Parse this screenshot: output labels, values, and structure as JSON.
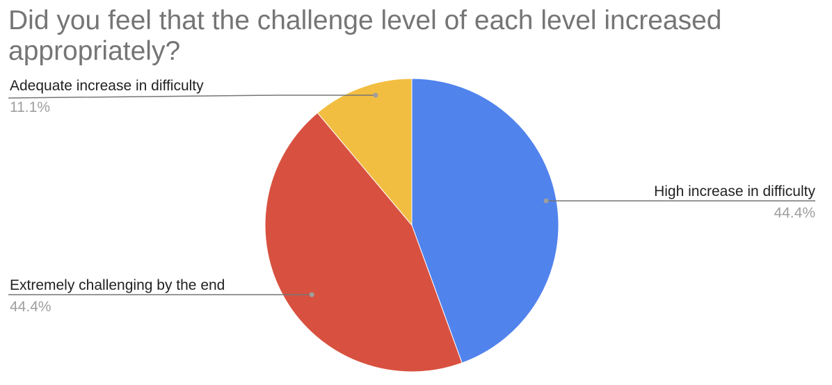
{
  "chart_data": {
    "type": "pie",
    "title": "Did you feel that the challenge level of each level increased appropriately?",
    "start_angle_deg": 0,
    "direction": "clockwise",
    "slices": [
      {
        "label": "High increase in difficulty",
        "value": 44.4,
        "percent_label": "44.4%",
        "color": "#5183ed"
      },
      {
        "label": "Extremely challenging by the end",
        "value": 44.4,
        "percent_label": "44.4%",
        "color": "#d85140"
      },
      {
        "label": "Adequate increase in difficulty",
        "value": 11.1,
        "percent_label": "11.1%",
        "color": "#f2be42"
      }
    ],
    "label_line_color": "#757575",
    "label_dot_color": "#9e9e9e"
  }
}
